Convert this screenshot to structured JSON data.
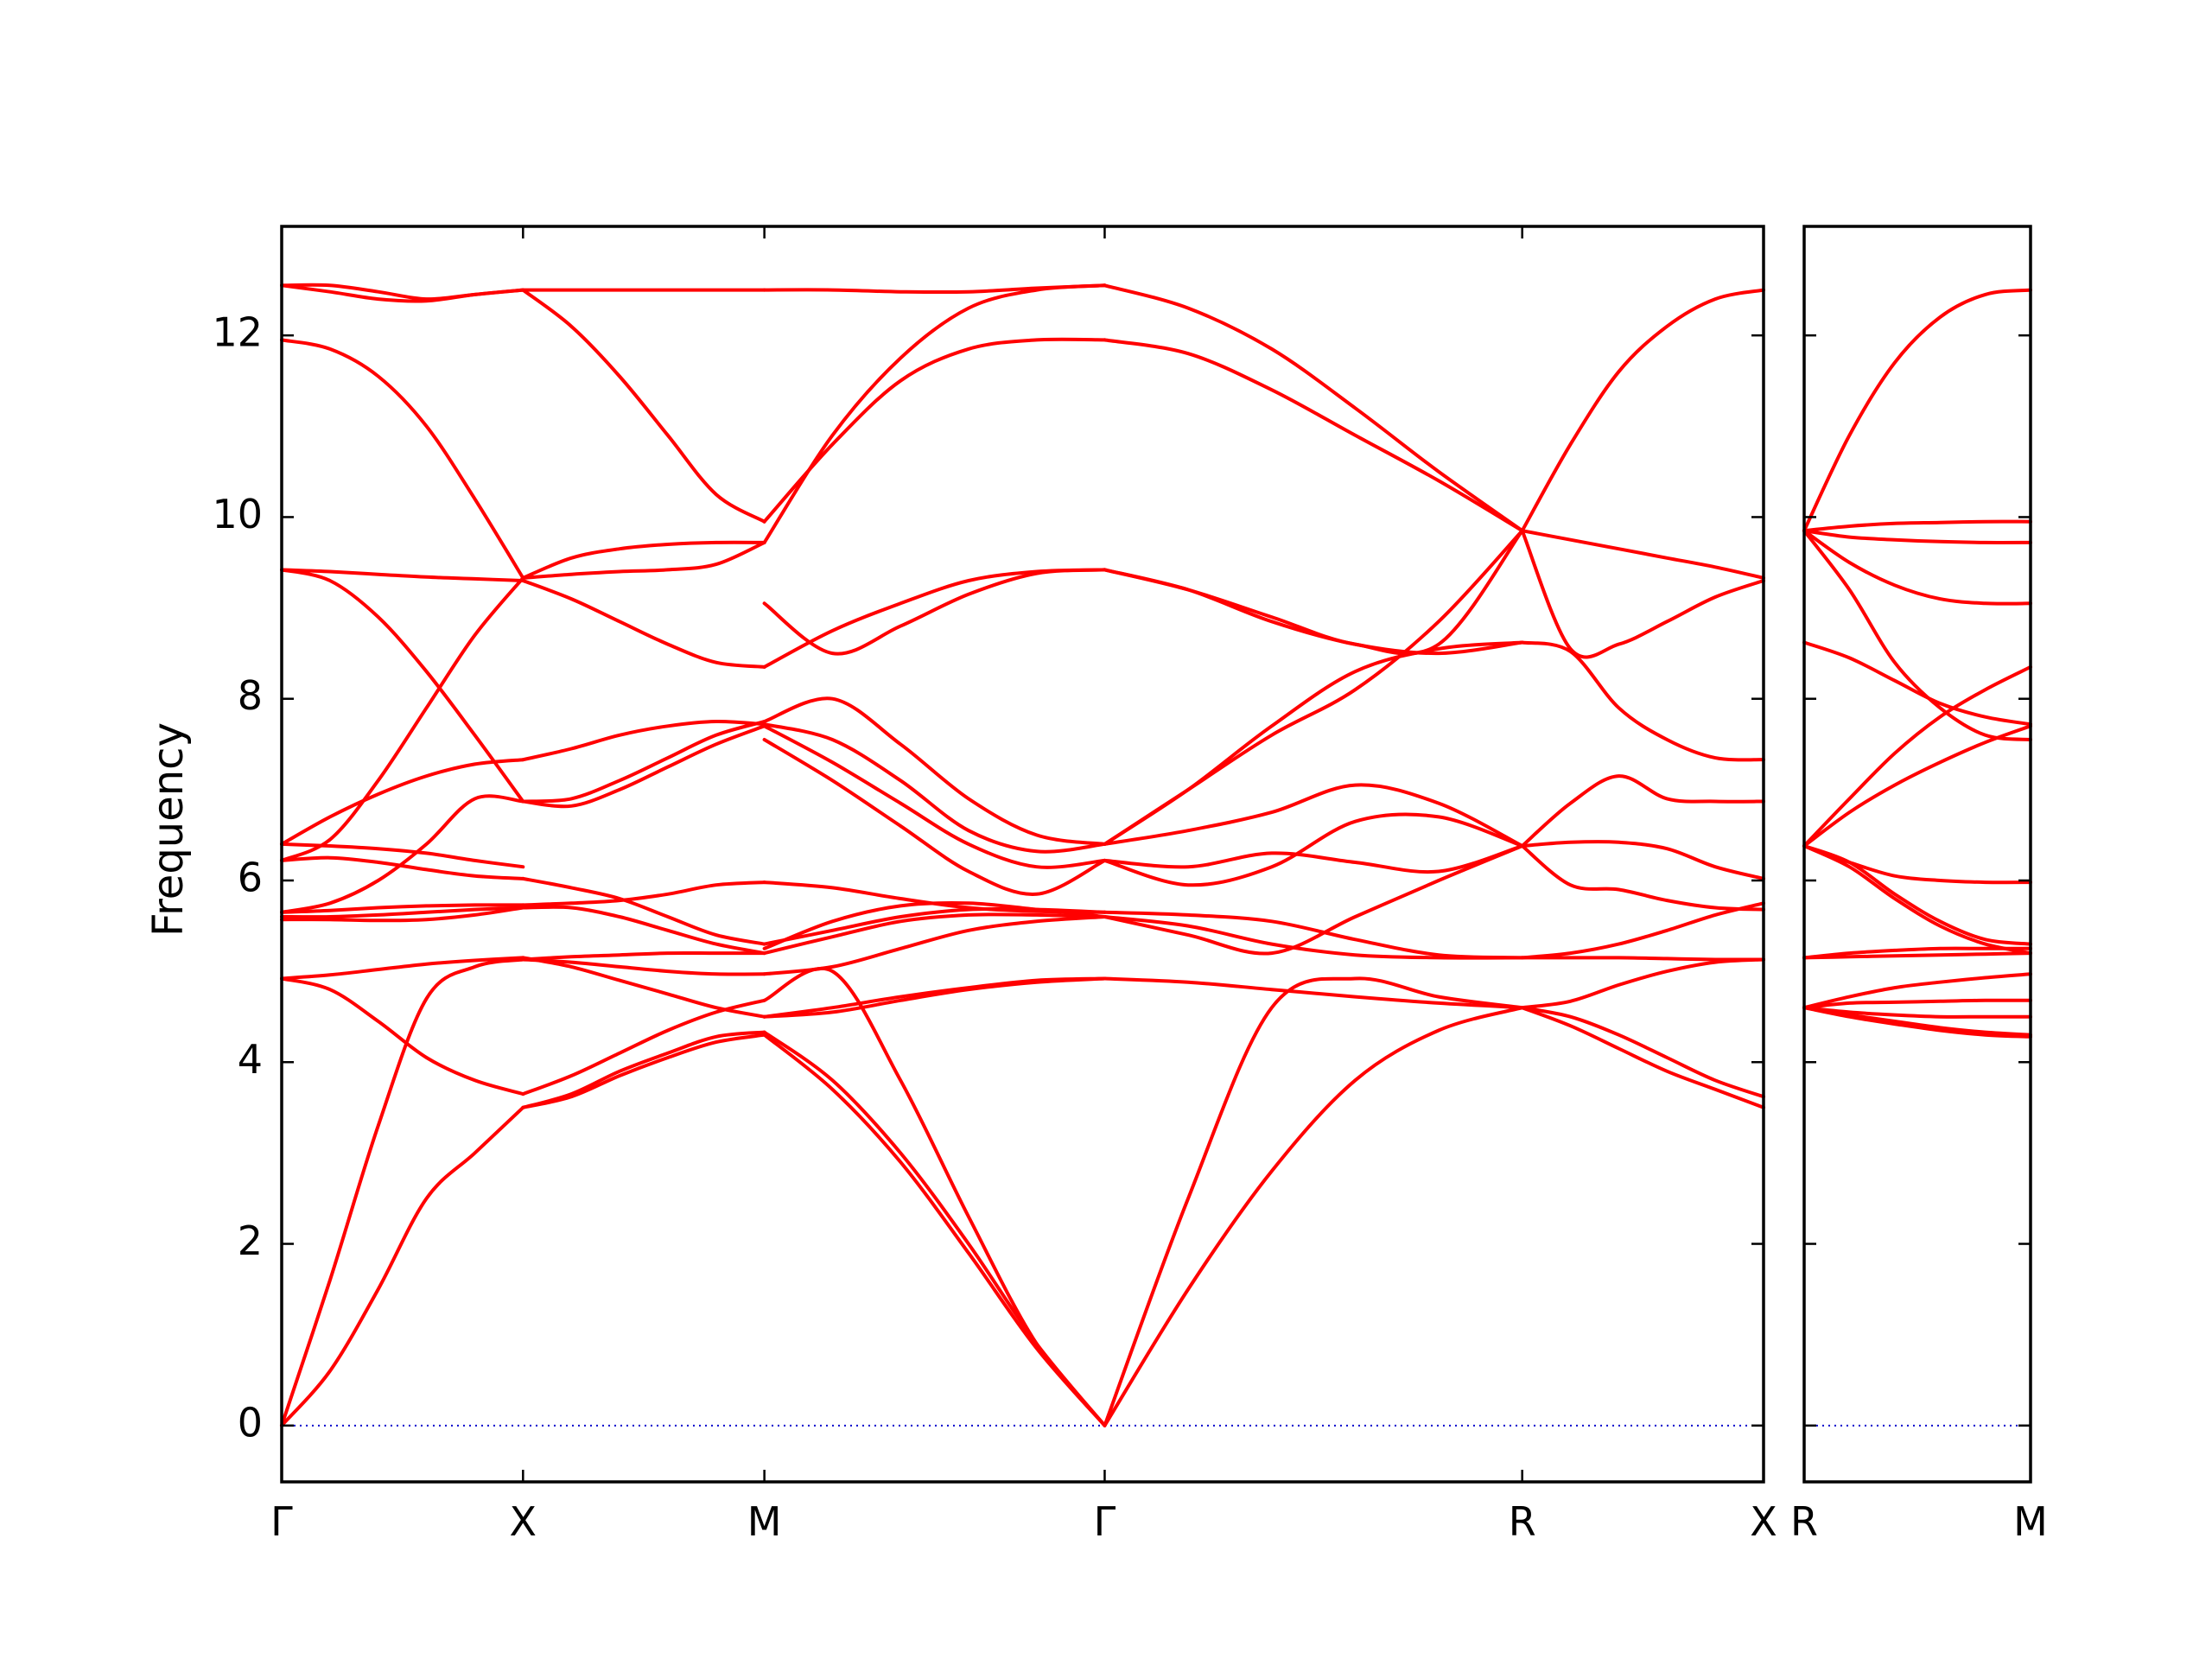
{
  "chart_data": {
    "type": "line",
    "title": "",
    "ylabel": "Frequency",
    "ylim": [
      -0.62,
      13.2
    ],
    "yticks": [
      0,
      2,
      4,
      6,
      8,
      10,
      12
    ],
    "band_color": "#ff0000",
    "zero_line_color": "#0000cc",
    "grid": false,
    "panels": [
      {
        "name": "panel-main",
        "labels": [
          "Γ",
          "X",
          "M",
          "Γ",
          "R",
          "X"
        ],
        "segments": [
          {
            "from": "Γ",
            "to": "X",
            "bands": [
              [
                0,
                0.6,
                1.5,
                2.5,
                3.0,
                3.5
              ],
              [
                0,
                1.6,
                3.3,
                4.7,
                5.05,
                5.13
              ],
              [
                4.92,
                4.8,
                4.45,
                4.05,
                3.8,
                3.65
              ],
              [
                4.92,
                4.96,
                5.02,
                5.08,
                5.12,
                5.15
              ],
              [
                5.57,
                5.57,
                5.56,
                5.57,
                5.62,
                5.7
              ],
              [
                5.6,
                5.6,
                5.62,
                5.65,
                5.68,
                5.7
              ],
              [
                5.65,
                5.67,
                5.7,
                5.72,
                5.73,
                5.73
              ],
              [
                5.65,
                5.75,
                6.0,
                6.4,
                6.9,
                6.87
              ],
              [
                6.22,
                6.25,
                6.2,
                6.12,
                6.05,
                6.02
              ],
              [
                6.22,
                6.45,
                7.1,
                7.9,
                8.7,
                9.33
              ],
              [
                6.4,
                6.7,
                6.95,
                7.15,
                7.28,
                7.33
              ],
              [
                6.4,
                6.38,
                6.35,
                6.3,
                6.22,
                6.15
              ],
              [
                9.42,
                9.4,
                9.37,
                9.34,
                9.32,
                9.3
              ],
              [
                9.42,
                9.3,
                8.9,
                8.3,
                7.6,
                6.87
              ],
              [
                11.95,
                11.85,
                11.55,
                11.0,
                10.2,
                9.33
              ],
              [
                12.55,
                12.55,
                12.48,
                12.4,
                12.45,
                12.5
              ],
              [
                12.55,
                12.48,
                12.4,
                12.38,
                12.45,
                12.5
              ]
            ]
          },
          {
            "from": "X",
            "to": "M",
            "bands": [
              [
                3.5,
                3.62,
                3.85,
                4.05,
                4.22,
                4.3
              ],
              [
                3.5,
                3.65,
                3.9,
                4.1,
                4.28,
                4.33
              ],
              [
                3.65,
                3.85,
                4.1,
                4.35,
                4.55,
                4.68
              ],
              [
                5.15,
                5.05,
                4.9,
                4.75,
                4.6,
                4.5
              ],
              [
                5.13,
                5.1,
                5.05,
                5.0,
                4.97,
                4.97
              ],
              [
                5.13,
                5.16,
                5.18,
                5.2,
                5.2,
                5.2
              ],
              [
                5.7,
                5.7,
                5.6,
                5.45,
                5.3,
                5.2
              ],
              [
                5.73,
                5.75,
                5.78,
                5.85,
                5.95,
                5.98
              ],
              [
                6.02,
                5.92,
                5.8,
                5.6,
                5.4,
                5.3
              ],
              [
                6.87,
                6.82,
                7.0,
                7.25,
                7.5,
                7.7
              ],
              [
                6.87,
                6.9,
                7.1,
                7.35,
                7.6,
                7.75
              ],
              [
                7.33,
                7.45,
                7.6,
                7.7,
                7.75,
                7.72
              ],
              [
                9.3,
                9.1,
                8.85,
                8.6,
                8.4,
                8.35
              ],
              [
                9.33,
                9.37,
                9.4,
                9.42,
                9.48,
                9.72
              ],
              [
                9.33,
                9.55,
                9.65,
                9.7,
                9.72,
                9.72
              ],
              [
                12.5,
                12.1,
                11.55,
                10.9,
                10.25,
                9.95
              ],
              [
                12.5,
                12.5,
                12.5,
                12.5,
                12.5,
                12.5
              ]
            ]
          },
          {
            "from": "M",
            "to": "Γ",
            "bands": [
              [
                4.3,
                3.7,
                2.9,
                1.9,
                0.85,
                0
              ],
              [
                4.33,
                3.8,
                3.0,
                2.0,
                0.9,
                0
              ],
              [
                4.68,
                5.0,
                3.8,
                2.3,
                0.9,
                0
              ],
              [
                4.5,
                4.6,
                4.72,
                4.82,
                4.9,
                4.92
              ],
              [
                4.5,
                4.55,
                4.68,
                4.8,
                4.88,
                4.92
              ],
              [
                4.97,
                5.05,
                5.25,
                5.45,
                5.55,
                5.6
              ],
              [
                5.2,
                5.38,
                5.55,
                5.62,
                5.62,
                5.6
              ],
              [
                5.25,
                5.55,
                5.72,
                5.75,
                5.68,
                5.6
              ],
              [
                5.3,
                5.45,
                5.6,
                5.68,
                5.68,
                5.65
              ],
              [
                5.98,
                5.92,
                5.8,
                5.7,
                5.66,
                5.65
              ],
              [
                7.55,
                7.1,
                6.6,
                6.1,
                5.85,
                6.22
              ],
              [
                7.7,
                7.3,
                6.85,
                6.4,
                6.15,
                6.22
              ],
              [
                7.75,
                8.0,
                7.5,
                6.9,
                6.5,
                6.4
              ],
              [
                7.72,
                7.55,
                7.1,
                6.55,
                6.32,
                6.4
              ],
              [
                8.35,
                8.75,
                9.05,
                9.3,
                9.4,
                9.42
              ],
              [
                9.05,
                8.5,
                8.8,
                9.15,
                9.38,
                9.42
              ],
              [
                9.95,
                10.8,
                11.5,
                11.85,
                11.95,
                11.95
              ],
              [
                9.72,
                10.9,
                11.75,
                12.3,
                12.5,
                12.55
              ],
              [
                12.5,
                12.5,
                12.48,
                12.48,
                12.52,
                12.55
              ]
            ]
          },
          {
            "from": "Γ",
            "to": "R",
            "bands": [
              [
                0,
                1.5,
                2.8,
                3.8,
                4.35,
                4.6
              ],
              [
                0,
                2.5,
                4.6,
                4.92,
                4.72,
                4.6
              ],
              [
                4.92,
                4.88,
                4.8,
                4.72,
                4.65,
                4.6
              ],
              [
                5.6,
                5.5,
                5.3,
                5.18,
                5.15,
                5.15
              ],
              [
                5.6,
                5.4,
                5.2,
                5.6,
                6.0,
                6.38
              ],
              [
                5.65,
                5.62,
                5.55,
                5.35,
                5.18,
                5.15
              ],
              [
                6.22,
                6.15,
                6.3,
                6.2,
                6.1,
                6.38
              ],
              [
                6.22,
                5.95,
                6.15,
                6.65,
                6.7,
                6.38
              ],
              [
                6.4,
                6.55,
                6.75,
                7.05,
                6.85,
                6.38
              ],
              [
                6.4,
                7.0,
                7.7,
                8.3,
                8.55,
                8.62
              ],
              [
                6.4,
                7.0,
                7.6,
                8.1,
                8.85,
                9.85
              ],
              [
                9.42,
                9.2,
                8.9,
                8.6,
                8.6,
                9.85
              ],
              [
                9.42,
                9.2,
                8.85,
                8.6,
                8.5,
                8.62
              ],
              [
                11.95,
                11.8,
                11.4,
                10.9,
                10.4,
                9.85
              ],
              [
                12.55,
                12.3,
                11.85,
                11.2,
                10.5,
                9.85
              ]
            ]
          },
          {
            "from": "R",
            "to": "X",
            "bands": [
              [
                4.6,
                4.4,
                4.15,
                3.9,
                3.7,
                3.5
              ],
              [
                4.6,
                4.5,
                4.3,
                4.05,
                3.8,
                3.62
              ],
              [
                4.6,
                4.67,
                4.85,
                5.0,
                5.1,
                5.13
              ],
              [
                5.15,
                5.15,
                5.15,
                5.14,
                5.13,
                5.13
              ],
              [
                5.15,
                5.2,
                5.3,
                5.45,
                5.62,
                5.75
              ],
              [
                6.38,
                5.95,
                5.9,
                5.78,
                5.7,
                5.68
              ],
              [
                6.38,
                6.42,
                6.42,
                6.35,
                6.15,
                6.02
              ],
              [
                6.38,
                6.85,
                7.15,
                6.9,
                6.87,
                6.87
              ],
              [
                8.62,
                8.52,
                7.9,
                7.55,
                7.35,
                7.33
              ],
              [
                9.85,
                9.75,
                9.65,
                9.55,
                9.45,
                9.33
              ],
              [
                9.85,
                8.55,
                8.6,
                8.85,
                9.12,
                9.3
              ],
              [
                9.85,
                10.8,
                11.6,
                12.1,
                12.4,
                12.5
              ]
            ]
          }
        ]
      },
      {
        "name": "panel-right",
        "labels": [
          "R",
          "M"
        ],
        "segments": [
          {
            "from": "R",
            "to": "M",
            "bands": [
              [
                4.6,
                4.5,
                4.42,
                4.35,
                4.3,
                4.28
              ],
              [
                4.6,
                4.52,
                4.45,
                4.38,
                4.33,
                4.3
              ],
              [
                4.6,
                4.55,
                4.52,
                4.5,
                4.5,
                4.5
              ],
              [
                4.6,
                4.65,
                4.66,
                4.67,
                4.68,
                4.68
              ],
              [
                4.6,
                4.72,
                4.82,
                4.88,
                4.93,
                4.97
              ],
              [
                5.15,
                5.16,
                5.17,
                5.18,
                5.19,
                5.2
              ],
              [
                5.15,
                5.2,
                5.23,
                5.25,
                5.25,
                5.25
              ],
              [
                6.38,
                6.2,
                5.85,
                5.55,
                5.35,
                5.3
              ],
              [
                6.38,
                6.15,
                5.8,
                5.5,
                5.3,
                5.2
              ],
              [
                6.38,
                6.2,
                6.05,
                6.0,
                5.98,
                5.98
              ],
              [
                6.38,
                6.75,
                7.05,
                7.3,
                7.52,
                7.7
              ],
              [
                6.38,
                6.9,
                7.4,
                7.8,
                8.1,
                8.35
              ],
              [
                8.62,
                8.45,
                8.2,
                7.95,
                7.8,
                7.72
              ],
              [
                9.85,
                9.2,
                8.4,
                7.9,
                7.6,
                7.55
              ],
              [
                9.85,
                9.5,
                9.25,
                9.1,
                9.05,
                9.05
              ],
              [
                9.85,
                9.78,
                9.75,
                9.73,
                9.72,
                9.72
              ],
              [
                9.85,
                9.9,
                9.93,
                9.94,
                9.95,
                9.95
              ],
              [
                9.85,
                10.9,
                11.7,
                12.2,
                12.45,
                12.5
              ]
            ]
          }
        ]
      }
    ]
  }
}
